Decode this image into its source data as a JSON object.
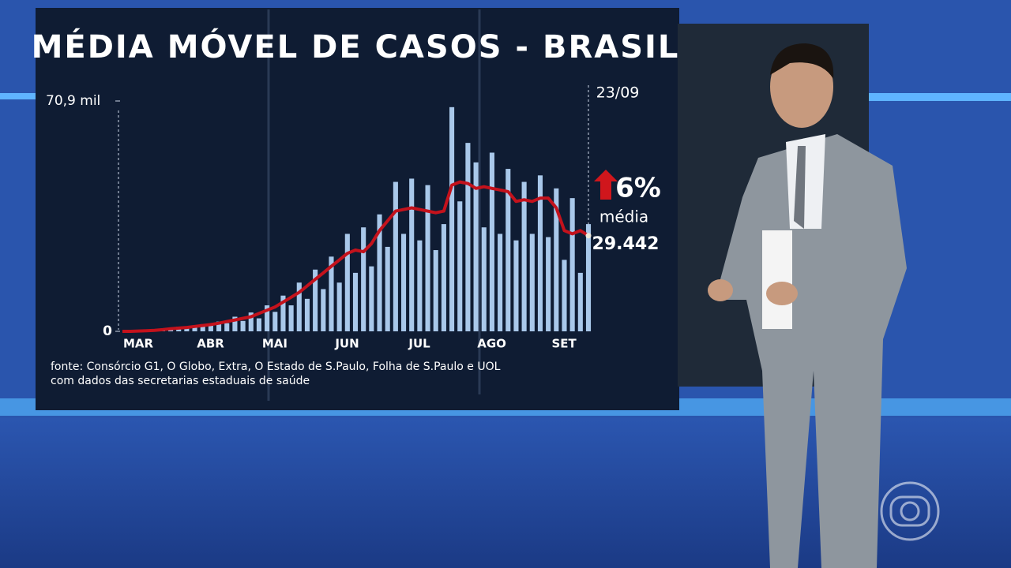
{
  "chart_data": {
    "type": "bar-line",
    "title": "MÉDIA MÓVEL DE CASOS - BRASIL",
    "categories": [
      "MAR",
      null,
      null,
      null,
      null,
      null,
      null,
      null,
      null,
      "ABR",
      null,
      null,
      null,
      null,
      null,
      null,
      null,
      "MAI",
      null,
      null,
      null,
      null,
      null,
      null,
      null,
      null,
      "JUN",
      null,
      null,
      null,
      null,
      null,
      null,
      null,
      null,
      "JUL",
      null,
      null,
      null,
      null,
      null,
      null,
      null,
      null,
      "AGO",
      null,
      null,
      null,
      null,
      null,
      null,
      null,
      null,
      "SET",
      null,
      null,
      null,
      null,
      null
    ],
    "bars": {
      "color": "#a9c8ea",
      "values": [
        0,
        0,
        0,
        300,
        500,
        600,
        1000,
        1400,
        1000,
        1200,
        2200,
        1800,
        3000,
        2500,
        4500,
        3200,
        5800,
        4000,
        8000,
        6000,
        11000,
        8000,
        15000,
        10000,
        19000,
        13000,
        23000,
        15000,
        30000,
        18000,
        32000,
        20000,
        36000,
        26000,
        46000,
        30000,
        47000,
        28000,
        45000,
        25000,
        33000,
        69000,
        40000,
        58000,
        52000,
        32000,
        55000,
        30000,
        50000,
        28000,
        46000,
        30000,
        48000,
        29000,
        44000,
        22000,
        41000,
        18000,
        33000
      ]
    },
    "line": {
      "color": "#c4121c",
      "values": [
        0,
        0,
        100,
        200,
        300,
        500,
        800,
        1000,
        1200,
        1500,
        1800,
        2100,
        2500,
        3000,
        3500,
        4000,
        4500,
        5500,
        6500,
        7500,
        9000,
        10500,
        12000,
        14000,
        16000,
        18000,
        20000,
        22000,
        24000,
        25000,
        24500,
        27000,
        31000,
        34000,
        37000,
        37500,
        38000,
        37500,
        37000,
        36500,
        37000,
        45000,
        46000,
        45500,
        44000,
        44500,
        44000,
        43500,
        43000,
        40000,
        40500,
        40000,
        41000,
        41000,
        38000,
        31000,
        30000,
        31000,
        29442
      ]
    },
    "ylim": [
      0,
      70900
    ],
    "yticks": [
      0,
      {
        "value": 70900,
        "label": "70,9 mil"
      }
    ],
    "callout": {
      "date": "23/09",
      "change": "6%",
      "label": "média",
      "value": "29.442"
    },
    "source": [
      "fonte: Consórcio G1, O Globo, Extra, O Estado de S.Paulo, Folha de S.Paulo e UOL",
      "com dados das secretarias estaduais de saúde"
    ]
  }
}
